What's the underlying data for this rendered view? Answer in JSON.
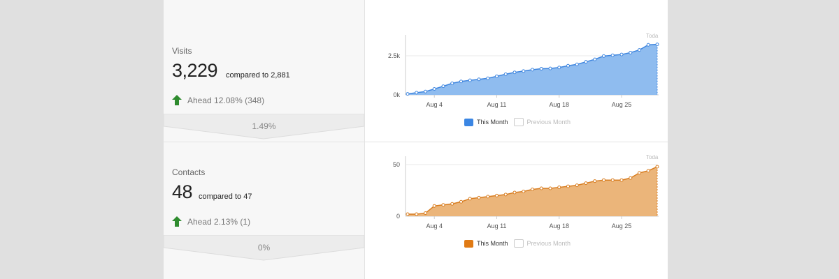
{
  "metrics": [
    {
      "label": "Visits",
      "value": "3,229",
      "compare": "compared to 2,881",
      "delta": "Ahead 12.08% (348)",
      "band": "1.49%"
    },
    {
      "label": "Contacts",
      "value": "48",
      "compare": "compared to 47",
      "delta": "Ahead 2.13% (1)",
      "band": "0%"
    }
  ],
  "legend": {
    "this_month": "This Month",
    "previous_month": "Previous Month"
  },
  "colors": {
    "visits": "#4a8fe7",
    "contacts": "#e08a2e",
    "up_arrow": "#2e8b2e"
  },
  "chart_data": [
    {
      "type": "area",
      "today_label": "Toda",
      "x": [
        "Aug 1",
        "Aug 2",
        "Aug 3",
        "Aug 4",
        "Aug 5",
        "Aug 6",
        "Aug 7",
        "Aug 8",
        "Aug 9",
        "Aug 10",
        "Aug 11",
        "Aug 12",
        "Aug 13",
        "Aug 14",
        "Aug 15",
        "Aug 16",
        "Aug 17",
        "Aug 18",
        "Aug 19",
        "Aug 20",
        "Aug 21",
        "Aug 22",
        "Aug 23",
        "Aug 24",
        "Aug 25",
        "Aug 26",
        "Aug 27",
        "Aug 28",
        "Aug 29"
      ],
      "xticks": [
        "Aug 4",
        "Aug 11",
        "Aug 18",
        "Aug 25"
      ],
      "yticks": [
        "0k",
        "2.5k"
      ],
      "ylim": [
        0,
        3300
      ],
      "series": [
        {
          "name": "This Month",
          "values": [
            60,
            140,
            210,
            380,
            550,
            740,
            860,
            930,
            990,
            1060,
            1190,
            1320,
            1440,
            1520,
            1610,
            1670,
            1690,
            1750,
            1860,
            1950,
            2110,
            2270,
            2480,
            2530,
            2580,
            2700,
            2870,
            3200,
            3229
          ]
        }
      ]
    },
    {
      "type": "area",
      "today_label": "Toda",
      "x": [
        "Aug 1",
        "Aug 2",
        "Aug 3",
        "Aug 4",
        "Aug 5",
        "Aug 6",
        "Aug 7",
        "Aug 8",
        "Aug 9",
        "Aug 10",
        "Aug 11",
        "Aug 12",
        "Aug 13",
        "Aug 14",
        "Aug 15",
        "Aug 16",
        "Aug 17",
        "Aug 18",
        "Aug 19",
        "Aug 20",
        "Aug 21",
        "Aug 22",
        "Aug 23",
        "Aug 24",
        "Aug 25",
        "Aug 26",
        "Aug 27",
        "Aug 28",
        "Aug 29"
      ],
      "xticks": [
        "Aug 4",
        "Aug 11",
        "Aug 18",
        "Aug 25"
      ],
      "yticks": [
        "0",
        "50"
      ],
      "ylim": [
        0,
        50
      ],
      "series": [
        {
          "name": "This Month",
          "values": [
            2,
            2,
            3,
            10,
            11,
            12,
            14,
            17,
            18,
            19,
            20,
            21,
            23,
            24,
            26,
            27,
            27,
            28,
            29,
            30,
            32,
            34,
            35,
            35,
            35,
            37,
            42,
            44,
            48
          ]
        }
      ]
    }
  ]
}
